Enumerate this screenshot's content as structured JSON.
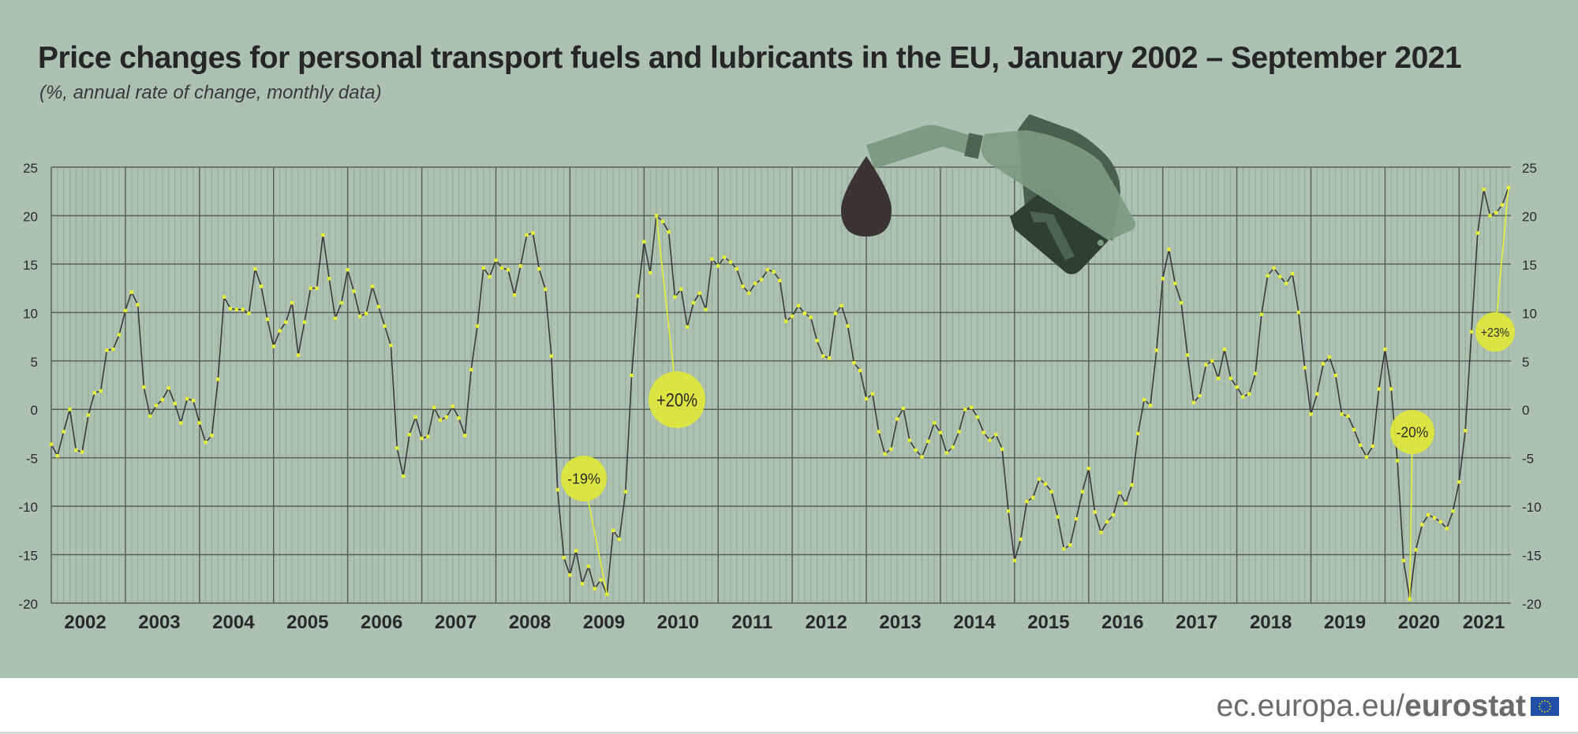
{
  "header": {
    "title": "Price changes for personal transport fuels and lubricants in the EU, January 2002 – September 2021",
    "subtitle": "(%, annual rate of change, monthly data)"
  },
  "footer": {
    "source_prefix": "ec.europa.eu/",
    "source_brand": "eurostat"
  },
  "colors": {
    "background": "#acc1b0",
    "line": "#3a3a3a",
    "marker": "#e6ee3a",
    "bubble": "#dce63c",
    "grid": "#5a5f58"
  },
  "chart_data": {
    "type": "line",
    "title": "Price changes for personal transport fuels and lubricants in the EU, January 2002 – September 2021",
    "subtitle": "(%, annual rate of change, monthly data)",
    "xlabel": "",
    "ylabel": "",
    "ylim": [
      -20,
      25
    ],
    "yticks": [
      "25",
      "20",
      "15",
      "10",
      "5",
      "0",
      "-5",
      "-10",
      "-15",
      "-20"
    ],
    "ytick_values": [
      25,
      20,
      15,
      10,
      5,
      0,
      -5,
      -10,
      -15,
      -20
    ],
    "years": [
      "2002",
      "2003",
      "2004",
      "2005",
      "2006",
      "2007",
      "2008",
      "2009",
      "2010",
      "2011",
      "2012",
      "2013",
      "2014",
      "2015",
      "2016",
      "2017",
      "2018",
      "2019",
      "2020",
      "2021"
    ],
    "start": "2002-01",
    "end": "2021-09",
    "grid": true,
    "series": [
      {
        "name": "Personal transport fuels and lubricants",
        "values": [
          -3.6,
          -4.8,
          -2.3,
          0.0,
          -4.2,
          -4.4,
          -0.6,
          1.7,
          1.9,
          6.1,
          6.2,
          7.7,
          10.2,
          12.1,
          10.8,
          2.3,
          -0.7,
          0.4,
          1.0,
          2.2,
          0.6,
          -1.4,
          1.1,
          0.9,
          -1.4,
          -3.4,
          -2.7,
          3.1,
          11.6,
          10.4,
          10.3,
          10.3,
          9.9,
          14.5,
          12.7,
          9.3,
          6.5,
          8.1,
          9.0,
          11.0,
          5.6,
          9.0,
          12.5,
          12.5,
          18.0,
          13.5,
          9.4,
          11.0,
          14.4,
          12.2,
          9.6,
          9.9,
          12.7,
          10.6,
          8.6,
          6.6,
          -4.0,
          -6.9,
          -2.6,
          -0.8,
          -3.0,
          -2.8,
          0.2,
          -1.1,
          -0.8,
          0.3,
          -0.9,
          -2.7,
          4.1,
          8.6,
          14.6,
          13.7,
          15.4,
          14.6,
          14.4,
          11.8,
          14.8,
          18.0,
          18.2,
          14.5,
          12.4,
          5.5,
          -8.3,
          -15.3,
          -17.1,
          -14.6,
          -18.0,
          -16.2,
          -18.5,
          -17.6,
          -19.1,
          -12.5,
          -13.4,
          -8.5,
          3.5,
          11.7,
          17.3,
          14.1,
          20.0,
          19.4,
          18.3,
          11.6,
          12.4,
          8.5,
          11.0,
          12.0,
          10.3,
          15.5,
          14.8,
          15.7,
          15.2,
          14.5,
          12.7,
          12.0,
          13.0,
          13.4,
          14.4,
          14.2,
          13.3,
          9.1,
          9.6,
          10.7,
          9.9,
          9.5,
          7.1,
          5.5,
          5.3,
          9.9,
          10.7,
          8.6,
          4.8,
          4.0,
          1.1,
          1.6,
          -2.3,
          -4.6,
          -4.1,
          -1.0,
          0.1,
          -3.2,
          -4.2,
          -4.9,
          -3.3,
          -1.4,
          -2.4,
          -4.5,
          -3.9,
          -2.3,
          0.0,
          0.2,
          -0.8,
          -2.4,
          -3.2,
          -2.6,
          -4.1,
          -10.5,
          -15.6,
          -13.4,
          -9.5,
          -9.1,
          -7.2,
          -7.7,
          -8.5,
          -11.1,
          -14.4,
          -14.0,
          -11.3,
          -8.5,
          -6.1,
          -10.6,
          -12.7,
          -11.6,
          -10.9,
          -8.6,
          -9.7,
          -7.8,
          -2.5,
          1.0,
          0.4,
          6.1,
          13.5,
          16.5,
          13.0,
          11.0,
          5.6,
          0.7,
          1.4,
          4.6,
          5.0,
          3.2,
          6.2,
          3.2,
          2.3,
          1.3,
          1.6,
          3.7,
          9.8,
          13.8,
          14.6,
          13.7,
          13.0,
          14.0,
          10.0,
          4.3,
          -0.5,
          1.6,
          4.7,
          5.4,
          3.5,
          -0.5,
          -0.7,
          -2.1,
          -3.7,
          -4.9,
          -3.8,
          2.1,
          6.2,
          2.1,
          -5.3,
          -15.6,
          -19.6,
          -14.5,
          -11.9,
          -10.9,
          -11.2,
          -11.6,
          -12.3,
          -10.5,
          -7.5,
          -2.2,
          8.0,
          18.2,
          22.7,
          20.0,
          20.3,
          21.1,
          22.9
        ]
      }
    ],
    "annotations": [
      {
        "label": "-19%",
        "month_index": 90
      },
      {
        "label": "+20%",
        "month_index": 98
      },
      {
        "label": "-20%",
        "month_index": 220
      },
      {
        "label": "+23%",
        "month_index": 236
      }
    ]
  }
}
